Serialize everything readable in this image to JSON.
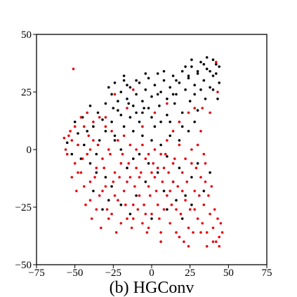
{
  "chart_data": {
    "type": "scatter",
    "title": "",
    "caption": "(b) HGConv",
    "xlabel": "",
    "ylabel": "",
    "xlim": [
      -75,
      75
    ],
    "ylim": [
      -50,
      50
    ],
    "x_ticks": [
      -75,
      -50,
      -25,
      0,
      25,
      50,
      75
    ],
    "y_ticks": [
      -50,
      -25,
      0,
      25,
      50
    ],
    "x_tick_labels": [
      "−75",
      "−50",
      "−25",
      "0",
      "25",
      "50",
      "75"
    ],
    "y_tick_labels": [
      "−50",
      "−25",
      "0",
      "25",
      "50"
    ],
    "grid": false,
    "legend": "none",
    "series": [
      {
        "color": "#000000",
        "points": [
          [
            -28,
            27
          ],
          [
            -26,
            24
          ],
          [
            -24,
            29
          ],
          [
            -22,
            21
          ],
          [
            -20,
            25
          ],
          [
            -18,
            30
          ],
          [
            -16,
            22
          ],
          [
            -14,
            27
          ],
          [
            -12,
            19
          ],
          [
            -10,
            24
          ],
          [
            -8,
            29
          ],
          [
            -6,
            21
          ],
          [
            -4,
            26
          ],
          [
            -2,
            31
          ],
          [
            0,
            23
          ],
          [
            2,
            28
          ],
          [
            4,
            33
          ],
          [
            6,
            25
          ],
          [
            8,
            30
          ],
          [
            10,
            22
          ],
          [
            12,
            27
          ],
          [
            14,
            32
          ],
          [
            16,
            24
          ],
          [
            18,
            29
          ],
          [
            20,
            34
          ],
          [
            22,
            26
          ],
          [
            24,
            31
          ],
          [
            26,
            36
          ],
          [
            28,
            28
          ],
          [
            30,
            33
          ],
          [
            32,
            38
          ],
          [
            34,
            30
          ],
          [
            36,
            35
          ],
          [
            38,
            27
          ],
          [
            40,
            32
          ],
          [
            42,
            37
          ],
          [
            44,
            29
          ],
          [
            -25,
            18
          ],
          [
            -20,
            15
          ],
          [
            -15,
            20
          ],
          [
            -10,
            16
          ],
          [
            -5,
            18
          ],
          [
            0,
            14
          ],
          [
            5,
            19
          ],
          [
            10,
            15
          ],
          [
            15,
            20
          ],
          [
            20,
            16
          ],
          [
            25,
            21
          ],
          [
            30,
            17
          ],
          [
            35,
            22
          ],
          [
            -30,
            20
          ],
          [
            -35,
            16
          ],
          [
            -40,
            19
          ],
          [
            -45,
            14
          ],
          [
            -50,
            12
          ],
          [
            -38,
            10
          ],
          [
            -32,
            13
          ],
          [
            -42,
            8
          ],
          [
            -48,
            7
          ],
          [
            -55,
            3
          ],
          [
            -52,
            -2
          ],
          [
            -46,
            -4
          ],
          [
            -40,
            -6
          ],
          [
            -36,
            -10
          ],
          [
            -30,
            -12
          ],
          [
            -26,
            -16
          ],
          [
            -20,
            -24
          ],
          [
            -14,
            -28
          ],
          [
            -8,
            -2
          ],
          [
            -2,
            -6
          ],
          [
            4,
            -10
          ],
          [
            10,
            -3
          ],
          [
            14,
            -14
          ],
          [
            18,
            -8
          ],
          [
            22,
            -20
          ],
          [
            26,
            -12
          ],
          [
            30,
            -6
          ],
          [
            34,
            -18
          ],
          [
            38,
            -10
          ],
          [
            6,
            2
          ],
          [
            -12,
            8
          ],
          [
            -6,
            6
          ],
          [
            2,
            10
          ],
          [
            12,
            6
          ],
          [
            18,
            4
          ],
          [
            24,
            8
          ],
          [
            28,
            12
          ],
          [
            -18,
            10
          ],
          [
            -24,
            6
          ],
          [
            -34,
            4
          ],
          [
            22,
            36
          ],
          [
            26,
            39
          ],
          [
            30,
            34
          ],
          [
            34,
            37
          ],
          [
            38,
            34
          ],
          [
            40,
            39
          ],
          [
            42,
            33
          ],
          [
            44,
            36
          ],
          [
            24,
            32
          ],
          [
            36,
            40
          ],
          [
            16,
            30
          ],
          [
            8,
            34
          ],
          [
            -4,
            33
          ],
          [
            -10,
            30
          ],
          [
            -16,
            28
          ],
          [
            -22,
            17
          ],
          [
            -18,
            32
          ],
          [
            -2,
            18
          ],
          [
            6,
            12
          ],
          [
            -8,
            12
          ],
          [
            20,
            10
          ],
          [
            32,
            26
          ],
          [
            28,
            24
          ],
          [
            12,
            12
          ],
          [
            -26,
            12
          ],
          [
            -44,
            2
          ],
          [
            -36,
            -2
          ],
          [
            -28,
            -22
          ],
          [
            -10,
            -20
          ],
          [
            0,
            -30
          ],
          [
            10,
            -26
          ],
          [
            20,
            -30
          ],
          [
            26,
            -24
          ],
          [
            -16,
            -8
          ],
          [
            -4,
            -14
          ],
          [
            8,
            -18
          ],
          [
            16,
            -22
          ],
          [
            -38,
            -18
          ],
          [
            -32,
            -26
          ],
          [
            -24,
            4
          ],
          [
            40,
            26
          ],
          [
            43,
            22
          ],
          [
            14,
            24
          ],
          [
            4,
            24
          ],
          [
            -6,
            16
          ],
          [
            -14,
            14
          ],
          [
            -30,
            8
          ],
          [
            -20,
            0
          ],
          [
            -12,
            -4
          ],
          [
            0,
            4
          ]
        ]
      },
      {
        "color": "#e8000b",
        "points": [
          [
            -51,
            35
          ],
          [
            42,
            38
          ],
          [
            43,
            25
          ],
          [
            38,
            16
          ],
          [
            33,
            18
          ],
          [
            -57,
            5
          ],
          [
            -55,
            -2
          ],
          [
            -53,
            8
          ],
          [
            -50,
            -6
          ],
          [
            -48,
            2
          ],
          [
            -46,
            -10
          ],
          [
            -44,
            10
          ],
          [
            -42,
            -2
          ],
          [
            -40,
            -14
          ],
          [
            -38,
            4
          ],
          [
            -36,
            -8
          ],
          [
            -34,
            -20
          ],
          [
            -32,
            -4
          ],
          [
            -30,
            -16
          ],
          [
            -28,
            0
          ],
          [
            -26,
            -28
          ],
          [
            -24,
            -10
          ],
          [
            -22,
            -22
          ],
          [
            -20,
            -6
          ],
          [
            -18,
            -18
          ],
          [
            -16,
            -30
          ],
          [
            -14,
            -12
          ],
          [
            -12,
            -24
          ],
          [
            -10,
            -8
          ],
          [
            -8,
            -20
          ],
          [
            -6,
            -32
          ],
          [
            -4,
            -4
          ],
          [
            -2,
            -16
          ],
          [
            0,
            -28
          ],
          [
            2,
            -12
          ],
          [
            4,
            -24
          ],
          [
            6,
            -36
          ],
          [
            8,
            -8
          ],
          [
            10,
            -20
          ],
          [
            12,
            -32
          ],
          [
            14,
            -14
          ],
          [
            16,
            -26
          ],
          [
            18,
            -38
          ],
          [
            20,
            -10
          ],
          [
            22,
            -22
          ],
          [
            24,
            -34
          ],
          [
            26,
            -6
          ],
          [
            28,
            -18
          ],
          [
            30,
            -30
          ],
          [
            32,
            -12
          ],
          [
            34,
            -24
          ],
          [
            36,
            -36
          ],
          [
            38,
            -28
          ],
          [
            40,
            -34
          ],
          [
            42,
            -40
          ],
          [
            44,
            -38
          ],
          [
            45,
            -32
          ],
          [
            41,
            -26
          ],
          [
            37,
            -20
          ],
          [
            35,
            -14
          ],
          [
            -56,
            0
          ],
          [
            -52,
            -12
          ],
          [
            -49,
            -18
          ],
          [
            -45,
            -4
          ],
          [
            -43,
            -24
          ],
          [
            -41,
            6
          ],
          [
            -39,
            -30
          ],
          [
            -37,
            -12
          ],
          [
            -35,
            2
          ],
          [
            -33,
            -34
          ],
          [
            -31,
            -8
          ],
          [
            -29,
            -26
          ],
          [
            -27,
            -2
          ],
          [
            -25,
            -14
          ],
          [
            -23,
            -36
          ],
          [
            -21,
            -12
          ],
          [
            -19,
            -2
          ],
          [
            -17,
            -24
          ],
          [
            -15,
            -6
          ],
          [
            -13,
            -34
          ],
          [
            -11,
            -16
          ],
          [
            -9,
            -26
          ],
          [
            -7,
            -10
          ],
          [
            -5,
            -24
          ],
          [
            -3,
            -36
          ],
          [
            -1,
            -20
          ],
          [
            1,
            -6
          ],
          [
            3,
            -18
          ],
          [
            5,
            -30
          ],
          [
            7,
            -14
          ],
          [
            9,
            -2
          ],
          [
            11,
            -10
          ],
          [
            13,
            -24
          ],
          [
            15,
            -4
          ],
          [
            17,
            -16
          ],
          [
            19,
            -28
          ],
          [
            21,
            -40
          ],
          [
            23,
            -14
          ],
          [
            25,
            -26
          ],
          [
            27,
            -36
          ],
          [
            29,
            -8
          ],
          [
            31,
            -20
          ],
          [
            33,
            -32
          ],
          [
            35,
            -6
          ],
          [
            36,
            -42
          ],
          [
            39,
            -16
          ],
          [
            43,
            -30
          ],
          [
            46,
            -36
          ],
          [
            44,
            -42
          ],
          [
            40,
            -40
          ],
          [
            -54,
            6
          ],
          [
            -50,
            10
          ],
          [
            -46,
            14
          ],
          [
            -42,
            16
          ],
          [
            -38,
            12
          ],
          [
            -34,
            14
          ],
          [
            -30,
            10
          ],
          [
            -26,
            8
          ],
          [
            -22,
            4
          ],
          [
            -18,
            6
          ],
          [
            -14,
            2
          ],
          [
            -10,
            0
          ],
          [
            -6,
            2
          ],
          [
            -2,
            -2
          ],
          [
            2,
            0
          ],
          [
            6,
            -2
          ],
          [
            10,
            4
          ],
          [
            14,
            -6
          ],
          [
            18,
            2
          ],
          [
            22,
            -4
          ],
          [
            26,
            0
          ],
          [
            30,
            2
          ],
          [
            34,
            -2
          ],
          [
            24,
            -42
          ],
          [
            16,
            -36
          ],
          [
            6,
            -40
          ],
          [
            -2,
            -34
          ],
          [
            -12,
            -30
          ],
          [
            -20,
            -32
          ],
          [
            -28,
            -30
          ],
          [
            -36,
            -26
          ],
          [
            -44,
            -16
          ],
          [
            -48,
            -10
          ],
          [
            -40,
            -22
          ],
          [
            -32,
            -18
          ],
          [
            -24,
            -20
          ],
          [
            -16,
            -14
          ],
          [
            -8,
            -12
          ],
          [
            0,
            -10
          ],
          [
            8,
            -26
          ],
          [
            20,
            -18
          ],
          [
            28,
            -26
          ],
          [
            32,
            -36
          ],
          [
            12,
            -18
          ],
          [
            4,
            -8
          ],
          [
            -4,
            -28
          ],
          [
            -24,
            24
          ],
          [
            -12,
            26
          ],
          [
            -6,
            10
          ],
          [
            2,
            16
          ],
          [
            10,
            20
          ],
          [
            18,
            12
          ],
          [
            24,
            16
          ],
          [
            28,
            18
          ],
          [
            32,
            8
          ],
          [
            14,
            8
          ],
          [
            -16,
            18
          ],
          [
            -30,
            14
          ],
          [
            -40,
            0
          ],
          [
            -52,
            4
          ]
        ]
      }
    ]
  }
}
